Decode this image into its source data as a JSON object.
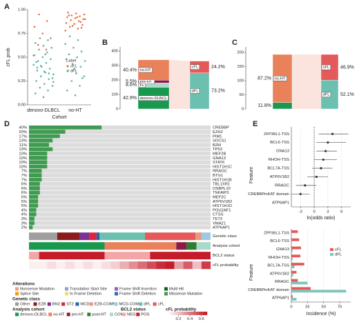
{
  "chart_data": [
    {
      "type": "beeswarm",
      "panel": "A",
      "ylabel": "cFL prob",
      "xlabel": "Cohort",
      "categories": [
        "denovo-DLBCL",
        "no-HT"
      ],
      "ylim": [
        0,
        1
      ],
      "yticks": [
        {
          "value": 0,
          "label": "0.00"
        },
        {
          "value": 0.25,
          "label": "0.25"
        },
        {
          "value": 0.5,
          "label": "0.50"
        },
        {
          "value": 0.75,
          "label": "0.75"
        },
        {
          "value": 1,
          "label": "1.00"
        }
      ],
      "legend_title": "Label",
      "series": [
        {
          "name": "cFL",
          "color": "#e8734a",
          "values": [
            [
              0.52,
              0.58,
              0.63,
              0.7,
              0.75,
              0.82,
              0.88,
              0.95
            ],
            [
              0.78,
              0.8,
              0.82,
              0.84,
              0.85,
              0.86,
              0.88,
              0.89,
              0.9,
              0.91,
              0.92,
              0.93,
              0.94,
              0.95,
              0.96,
              0.97,
              0.87,
              0.83,
              0.9,
              0.92,
              0.94,
              0.81
            ]
          ]
        },
        {
          "name": "dFL",
          "color": "#5fb3a6",
          "values": [
            [
              0.08,
              0.12,
              0.15,
              0.18,
              0.2,
              0.22,
              0.25,
              0.27,
              0.3,
              0.32,
              0.34,
              0.36,
              0.38,
              0.4,
              0.42,
              0.44,
              0.46,
              0.48,
              0.5,
              0.52,
              0.55,
              0.58,
              0.6,
              0.62,
              0.65,
              0.68,
              0.7,
              0.28,
              0.35,
              0.45,
              0.33,
              0.41,
              0.24,
              0.53,
              0.39
            ],
            [
              0.1,
              0.15,
              0.2,
              0.25,
              0.3,
              0.33,
              0.36,
              0.4,
              0.43,
              0.46,
              0.5,
              0.53,
              0.56,
              0.6,
              0.64,
              0.68,
              0.72,
              0.28,
              0.38,
              0.48
            ]
          ]
        }
      ]
    },
    {
      "type": "alluvial",
      "panel": "B",
      "ylim": [
        0,
        410
      ],
      "yticks": [
        0,
        100,
        200,
        300,
        400
      ],
      "left": [
        {
          "name": "denovo-DLBCL",
          "value": 150,
          "label": "42.9%",
          "color": "#1a9850"
        },
        {
          "name": "FL",
          "value": 30,
          "label": "8.6%",
          "color": "#a9d9c9"
        },
        {
          "name": "pre-HT",
          "value": 19,
          "label": "5.5%",
          "color": "#8b1a4a"
        },
        {
          "name": "no-HT",
          "value": 141,
          "label": "40.4%",
          "color": "#e9825b"
        }
      ],
      "right": [
        {
          "name": "dFL",
          "value": 249,
          "label": "73.2%",
          "color": "#6cc0b0"
        },
        {
          "name": "cFL",
          "value": 82,
          "label": "24.2%",
          "color": "#e45a5a"
        }
      ]
    },
    {
      "type": "alluvial",
      "panel": "C",
      "ylim": [
        0,
        210
      ],
      "yticks": [
        0,
        50,
        100,
        150,
        200
      ],
      "left": [
        {
          "name": null,
          "value": 23,
          "label": "11.8%",
          "color": "#1a9850"
        },
        {
          "name": "no-HT",
          "value": 170,
          "label": "87.2%",
          "color": "#e9825b"
        }
      ],
      "right": [
        {
          "name": "dFL",
          "value": 102,
          "label": "52.1%",
          "color": "#6cc0b0"
        },
        {
          "name": "cFL",
          "value": 91,
          "label": "46.9%",
          "color": "#e45a5a"
        }
      ]
    },
    {
      "type": "oncoprint",
      "panel": "D",
      "genes": [
        "CREBBP",
        "EZH2",
        "PIM1",
        "SOCS1",
        "B2M",
        "TP53",
        "MEF2B",
        "GNA13",
        "STAT6",
        "HIST1H1C",
        "RRAGC",
        "BTG1",
        "HIST1H1B",
        "TBL1XR1",
        "OSBPL10",
        "TNFAIP3",
        "MEF2C",
        "ATP6V1B2",
        "HIST1H1D",
        "POU2AF1",
        "CTSS",
        "TET2",
        "VMA21",
        "ATP6AP1"
      ],
      "frequencies": [
        40,
        20,
        17,
        13,
        11,
        13,
        10,
        10,
        10,
        10,
        7,
        7,
        7,
        6,
        6,
        6,
        5,
        5,
        5,
        4,
        4,
        3,
        3,
        2
      ],
      "value_labels": [
        "40%",
        "20%",
        "17%",
        "13%",
        "11%",
        "13%",
        "10%",
        "10%",
        "10%",
        "10%",
        "7%",
        "7%",
        "7%",
        "6%",
        "6%",
        "6%",
        "5%",
        "5%",
        "5%",
        "4%",
        "4%",
        "3%",
        "3%",
        "2%"
      ],
      "mutation_color": "#3f9b4f",
      "legends": [
        {
          "title": "Alterations",
          "items": [
            "Nonsense Mutation",
            "Translation Start Site",
            "Frame Shift Insertion",
            "Multi Hit",
            "Splice Site",
            "In Frame Deletion",
            "Frame Shift Deletion",
            "Missense Mutation"
          ],
          "colors": [
            "#f0a07a",
            "#8fa3c7",
            "#9b59b6",
            "#1b5e20",
            "#f39c12",
            "#f1e05a",
            "#2c6fbb",
            "#3f9b4f"
          ]
        },
        {
          "title": "Genetic class",
          "items": [
            "Other",
            "EZB",
            "BN2",
            "ST2",
            "MCD",
            "EZB-COMP",
            "MCD-COMP",
            "dFL",
            "cFL"
          ],
          "colors": [
            "#9e9e9e",
            "#8b1a1a",
            "#7b3294",
            "#d7263d",
            "#2166ac",
            "#e9967a",
            "#9ecae1",
            "#6cc0b0",
            "#e45a5a"
          ]
        },
        {
          "title": "Analysis cohort",
          "items": [
            "denovo-DLBCL",
            "no-HT",
            "pre-HT",
            "post-HT",
            "COM"
          ],
          "colors": [
            "#1a9850",
            "#e9825b",
            "#8b1a4a",
            "#2e7d32",
            "#a9d9c9"
          ]
        },
        {
          "title": "BCL2 status",
          "items": [
            "NEG",
            "POS"
          ],
          "colors": [
            "#f4a6a6",
            "#c51b2a"
          ]
        }
      ],
      "tracks": [
        {
          "name": "Genetic class",
          "segments": [
            {
              "category": "Other",
              "count": 28
            },
            {
              "category": "EZB",
              "count": 22
            },
            {
              "category": "BN2",
              "count": 10
            },
            {
              "category": "ST2",
              "count": 7
            },
            {
              "category": "MCD",
              "count": 3
            },
            {
              "category": "dFL",
              "count": 45
            },
            {
              "category": "cFL",
              "count": 50
            },
            {
              "category": "EZB-COMP",
              "count": 6
            },
            {
              "category": "MCD-COMP",
              "count": 9
            }
          ]
        },
        {
          "name": "Analysis cohort",
          "segments": [
            {
              "category": "denovo-DLBCL",
              "count": 75
            },
            {
              "category": "no-HT",
              "count": 71
            },
            {
              "category": "pre-HT",
              "count": 10
            },
            {
              "category": "post-HT",
              "count": 10
            },
            {
              "category": "COM",
              "count": 14
            }
          ]
        },
        {
          "name": "BCL2 status",
          "segments": [
            {
              "category": "NEG",
              "count": 10
            },
            {
              "category": "POS",
              "count": 65
            },
            {
              "category": "NEG",
              "count": 45
            },
            {
              "category": "POS",
              "count": 60
            }
          ]
        }
      ],
      "probability_track": {
        "name": "cFL probability",
        "values": [
          0.05,
          0.05,
          0.1,
          0.05,
          0.1,
          0.05,
          0.1,
          0.05,
          0.1,
          0.15,
          0.25,
          0.35,
          0.45,
          0.55,
          0.65,
          0.7,
          0.3,
          0.5,
          0.2,
          0.6
        ],
        "range": [
          0,
          0.7
        ],
        "ticks": [
          0.2,
          0.4,
          0.6
        ],
        "color": "#c51b2a"
      }
    },
    {
      "type": "forest",
      "panel": "E",
      "ylabel": "Feature",
      "xlabel": "ln(odds ratio)",
      "features": [
        "ZFP36L1-TSS",
        "BCL6-TSS",
        "GNA13",
        "RHOH-TSS",
        "BCL7A-TSS",
        "ATP6V1B2",
        "RRAGC",
        "CREBBPinKAT domain",
        "ATP6AP1"
      ],
      "estimates": [
        4,
        3,
        2.5,
        2,
        1.5,
        0.5,
        -2,
        -3,
        null
      ],
      "ci_low": [
        1,
        0.5,
        0.5,
        0,
        -0.5,
        -1.5,
        -4,
        -5,
        null
      ],
      "ci_high": [
        7.5,
        7,
        5,
        5,
        4,
        3,
        0.5,
        -1,
        null
      ],
      "xlim": [
        -5,
        8
      ],
      "xticks": [
        -3,
        0,
        3,
        6
      ],
      "grid": true
    },
    {
      "type": "hbar",
      "ylabel": "Feature",
      "xlabel": "Incidence (%)",
      "features": [
        "ZFP36L1-TSS",
        "BCL6-TSS",
        "GNA13",
        "RHOH-TSS",
        "BCL7A-TSS",
        "ATP6V1B2",
        "RRAGC",
        "CREBBPinKAT domain",
        "ATP6AP1"
      ],
      "series": [
        {
          "name": "cFL",
          "color": "#e45a5a",
          "values": [
            10,
            12,
            15,
            14,
            20,
            8,
            10,
            30,
            2
          ]
        },
        {
          "name": "dFL",
          "color": "#7fc4b8",
          "values": [
            0,
            0,
            2,
            2,
            5,
            3,
            25,
            85,
            8
          ]
        }
      ],
      "xlim": [
        0,
        92
      ],
      "xticks": [
        0,
        25,
        50,
        75
      ],
      "grid": true
    }
  ]
}
